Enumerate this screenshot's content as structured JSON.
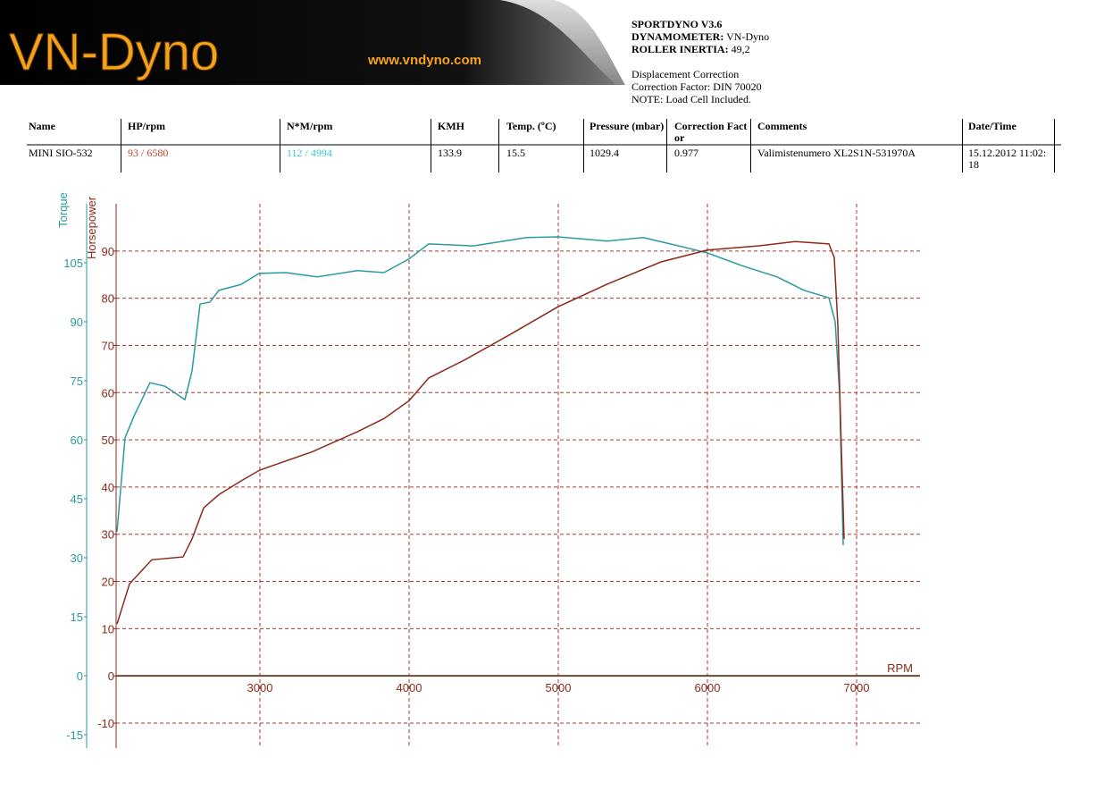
{
  "header": {
    "logo": "VN-Dyno",
    "url": "www.vndyno.com",
    "software": "SPORTDYNO V3.6",
    "dynamometer_label": "DYNAMOMETER:",
    "dynamometer": "VN-Dyno",
    "inertia_label": "ROLLER INERTIA:",
    "inertia": "49,2",
    "notes": [
      "Displacement Correction",
      "Correction Factor: DIN 70020",
      "NOTE: Load Cell Included."
    ]
  },
  "table": {
    "columns": [
      "Name",
      "HP/rpm",
      "N*M/rpm",
      "KMH",
      "Temp. (ºC)",
      "Pressure (mbar)",
      "Correction Factor",
      "Comments",
      "Date/Time"
    ],
    "rows": [
      [
        "MINI SIO-532",
        "93 / 6580",
        "112 / 4994",
        "133.9",
        "15.5",
        "1029.4",
        "0.977",
        "Valimistenumero XL2S1N-531970A",
        "15.12.2012 11:02:18"
      ]
    ]
  },
  "chart_data": {
    "type": "line",
    "x_label": "RPM",
    "y_label": "Torque",
    "y2_label": "Horsepower",
    "xlim": [
      2036,
      7425
    ],
    "xticks": [
      3000,
      4000,
      5000,
      6000,
      7000
    ],
    "ylim": [
      -18.4,
      120
    ],
    "yticks": [
      -15,
      0,
      15,
      30,
      45,
      60,
      75,
      90,
      105
    ],
    "y2lim": [
      -15.3,
      100
    ],
    "y2ticks": [
      -10,
      0,
      10,
      20,
      30,
      40,
      50,
      60,
      70,
      80,
      90
    ],
    "grid": true,
    "series": [
      {
        "name": "Torque",
        "color": "#2b9a9c",
        "axis": "y",
        "x": [
          2042,
          2096,
          2156,
          2263,
          2365,
          2497,
          2545,
          2599,
          2665,
          2725,
          2874,
          2994,
          3174,
          3383,
          3653,
          3832,
          4000,
          4132,
          4431,
          4790,
          5000,
          5329,
          5569,
          5808,
          6000,
          6228,
          6467,
          6647,
          6814,
          6856,
          6886,
          6910
        ],
        "values": [
          36.6,
          60.5,
          66,
          74.5,
          73.6,
          70.2,
          77.5,
          94.5,
          95,
          98,
          99.5,
          102.3,
          102.5,
          101.4,
          103,
          102.5,
          106,
          109.8,
          109.3,
          111.4,
          111.6,
          110.5,
          111.4,
          109.3,
          107.5,
          104.3,
          101.4,
          98,
          96.1,
          90,
          71.8,
          33.2
        ]
      },
      {
        "name": "Horsepower",
        "color": "#8b2a1a",
        "axis": "y2",
        "x": [
          2042,
          2126,
          2275,
          2485,
          2545,
          2623,
          2725,
          2874,
          3000,
          3353,
          3653,
          3832,
          4000,
          4132,
          4371,
          4671,
          5000,
          5329,
          5689,
          6000,
          6347,
          6587,
          6814,
          6850,
          6874,
          6898,
          6916
        ],
        "values": [
          11,
          19.5,
          24.6,
          25.2,
          29,
          35.6,
          38.4,
          41.3,
          43.6,
          47.5,
          51.7,
          54.5,
          58.3,
          63.1,
          66.9,
          72.2,
          78.2,
          83,
          87.7,
          90.2,
          91.1,
          92,
          91.5,
          88.6,
          74.4,
          47.9,
          29
        ]
      }
    ]
  }
}
